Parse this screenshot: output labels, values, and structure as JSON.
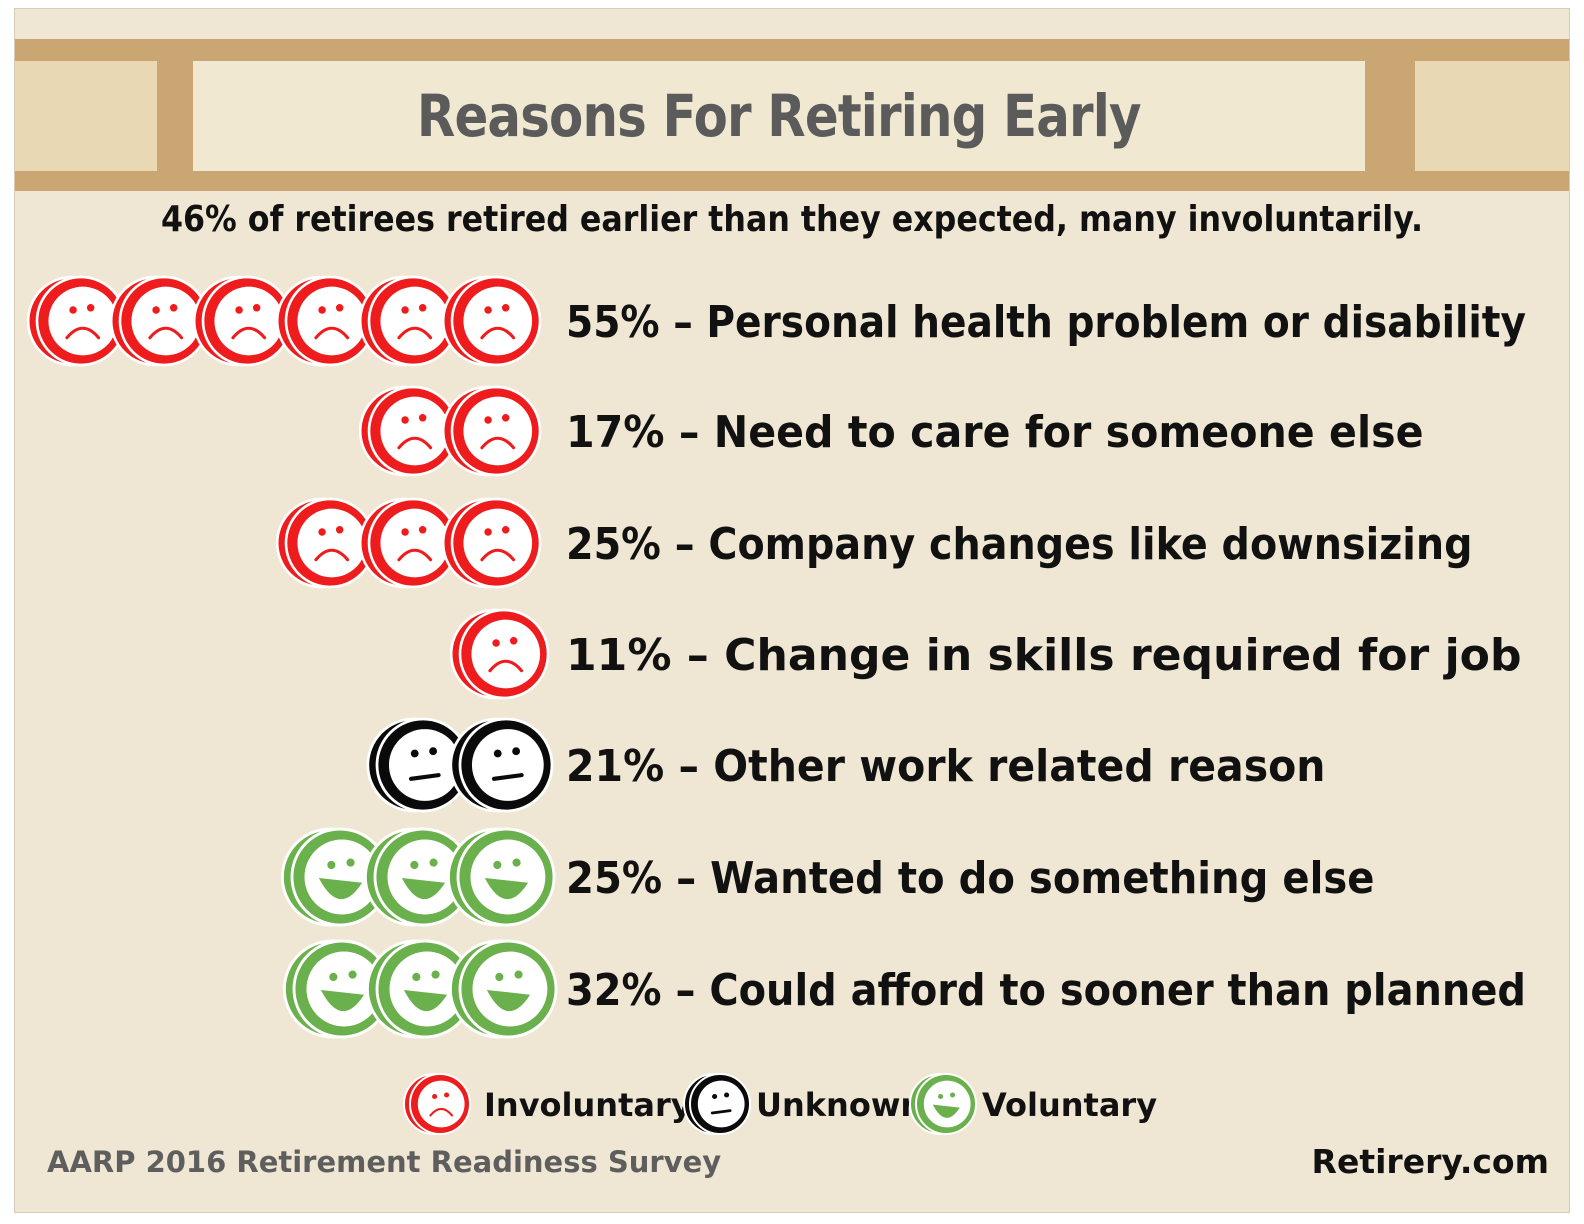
{
  "title": "Reasons For Retiring Early",
  "subtitle": "46% of retirees retired earlier than they expected, many involuntarily.",
  "source": "AARP 2016 Retirement Readiness Survey",
  "brand": "Retirery.com",
  "colors": {
    "involuntary": "#ee1c1c",
    "unknown": "#0a0a0a",
    "voluntary": "#6ab04c",
    "background": "#efe7d3",
    "banner": "#caa772"
  },
  "chart_data": {
    "type": "bar",
    "title": "Reasons For Retiring Early",
    "subtitle": "46% of retirees retired earlier than they expected, many involuntarily.",
    "categories": [
      "Personal health problem or disability",
      "Need to care for someone else",
      "Company changes like downsizing",
      "Change in skills required for job",
      "Other work related reason",
      "Wanted to do something else",
      "Could afford to sooner than planned"
    ],
    "rows": [
      {
        "percent": 55,
        "value_label": "55%",
        "label": "Personal health problem or disability",
        "type": "involuntary",
        "icons": 6
      },
      {
        "percent": 17,
        "value_label": "17%",
        "label": "Need to care for someone else",
        "type": "involuntary",
        "icons": 2
      },
      {
        "percent": 25,
        "value_label": "25%",
        "label": "Company changes like downsizing",
        "type": "involuntary",
        "icons": 3
      },
      {
        "percent": 11,
        "value_label": "11%",
        "label": "Change in skills required for job",
        "type": "involuntary",
        "icons": 1
      },
      {
        "percent": 21,
        "value_label": "21%",
        "label": "Other work related reason",
        "type": "unknown",
        "icons": 2
      },
      {
        "percent": 25,
        "value_label": "25%",
        "label": "Wanted to do something else",
        "type": "voluntary",
        "icons": 3
      },
      {
        "percent": 32,
        "value_label": "32%",
        "label": "Could afford to sooner than planned",
        "type": "voluntary",
        "icons": 3
      }
    ],
    "legend": [
      {
        "type": "involuntary",
        "label": "Involuntary"
      },
      {
        "type": "unknown",
        "label": "Unknown"
      },
      {
        "type": "voluntary",
        "label": "Voluntary"
      }
    ],
    "legend_position": "bottom-center",
    "grid": false
  }
}
